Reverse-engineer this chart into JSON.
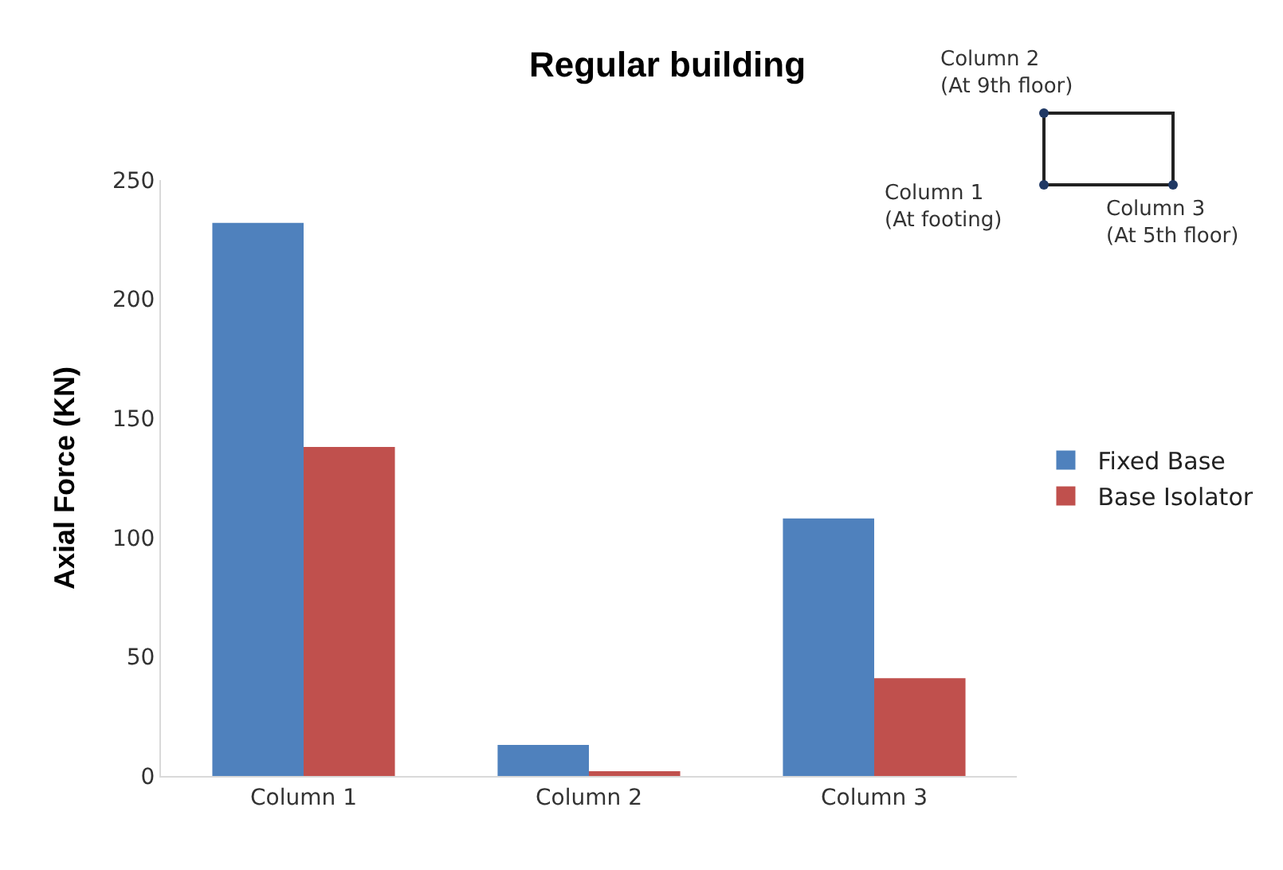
{
  "chart_data": {
    "type": "bar",
    "title": "Regular building",
    "ylabel": "Axial Force (KN)",
    "categories": [
      "Column 1",
      "Column 2",
      "Column 3"
    ],
    "series": [
      {
        "name": "Fixed Base",
        "color": "#4f81bd",
        "values": [
          232,
          13,
          108
        ]
      },
      {
        "name": "Base Isolator",
        "color": "#c0504d",
        "values": [
          138,
          2,
          41
        ]
      }
    ],
    "ylim": [
      0,
      250
    ],
    "yticks": [
      0,
      50,
      100,
      150,
      200,
      250
    ],
    "grid": false,
    "legend": "right",
    "annotations": [
      "Column 2\n(At 9th floor)",
      "Column 1\n(At footing)",
      "Column 3\n(At 5th floor)"
    ]
  }
}
